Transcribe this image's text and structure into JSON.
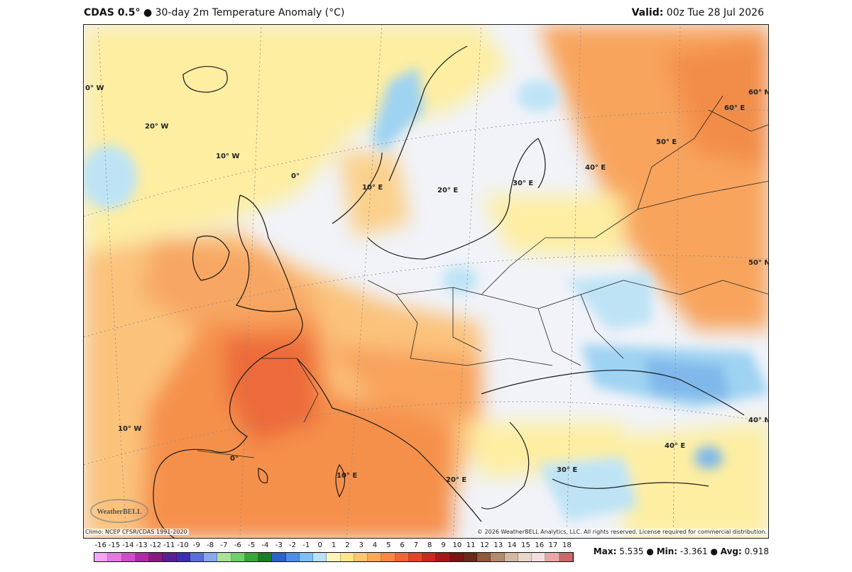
{
  "header": {
    "model": "CDAS 0.5°",
    "title": "● 30-day 2m Temperature Anomaly (°C)",
    "valid_label": "Valid:",
    "valid_time": "00z Tue 28 Jul 2026"
  },
  "map": {
    "lon_labels": [
      "0° W",
      "20° W",
      "10° W",
      "0°",
      "10° E",
      "20° E",
      "30° E",
      "40° E",
      "50° E",
      "60° E",
      "10° W",
      "0°",
      "10° E",
      "20° E",
      "30° E",
      "40° E"
    ],
    "lat_labels": [
      "60° N",
      "50° N",
      "40° N"
    ],
    "footer_left": "Climo: NCEP CFSR/CDAS 1991-2020",
    "footer_right": "© 2026 WeatherBELL Analytics, LLC. All rights reserved. License required for commercial distribution.",
    "logo_text": "WeatherBELL"
  },
  "colorbar": {
    "labels": [
      "-16",
      "-15",
      "-14",
      "-13",
      "-12",
      "-11",
      "-10",
      "-9",
      "-8",
      "-7",
      "-6",
      "-5",
      "-4",
      "-3",
      "-2",
      "-1",
      "0",
      "1",
      "2",
      "3",
      "4",
      "5",
      "6",
      "7",
      "8",
      "9",
      "10",
      "11",
      "12",
      "13",
      "14",
      "15",
      "16",
      "17",
      "18"
    ],
    "colors": [
      "#f2a6f0",
      "#e37ae0",
      "#cf4fc8",
      "#b02aa6",
      "#861c7d",
      "#5a2090",
      "#3b2fb0",
      "#5a6fd6",
      "#8aa8ee",
      "#a8e39a",
      "#6fcf6a",
      "#3aa63a",
      "#1f7a2a",
      "#2e62c9",
      "#4f8fe6",
      "#7fbff4",
      "#b8e1fa",
      "#fff4b8",
      "#fee48c",
      "#fdc670",
      "#fca85a",
      "#f98747",
      "#f26438",
      "#e5432b",
      "#c82a22",
      "#a31a1b",
      "#7a1614",
      "#6a2a1a",
      "#8e5a3c",
      "#b38a6e",
      "#d4b8a4",
      "#ead7c9",
      "#f3dede",
      "#e9a7a7",
      "#c96a6a"
    ]
  },
  "stats": {
    "max_label": "Max:",
    "max": "5.535",
    "min_label": "Min:",
    "min": "-3.361",
    "avg_label": "Avg:",
    "avg": "0.918"
  }
}
